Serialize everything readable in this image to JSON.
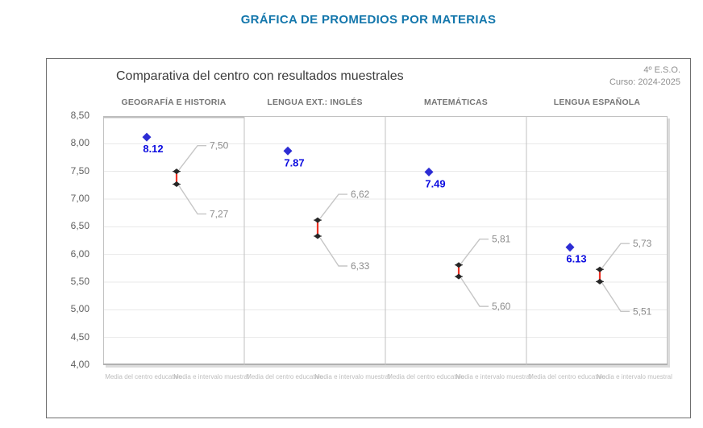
{
  "page": {
    "title": "GRÁFICA DE PROMEDIOS POR MATERIAS",
    "title_color": "#1477ac"
  },
  "chart_data": {
    "type": "scatter",
    "title": "Comparativa del centro con resultados muestrales",
    "grade": "4º E.S.O.",
    "course": "Curso: 2024-2025",
    "ylim": [
      4.0,
      8.5
    ],
    "ytick_step": 0.5,
    "ytick_labels": [
      "8,50",
      "8,00",
      "7,50",
      "7,00",
      "6,50",
      "6,00",
      "5,50",
      "5,00",
      "4,50",
      "4,00"
    ],
    "category_labels": [
      "Media del centro educativo",
      "Media e intervalo muestral"
    ],
    "grid": true,
    "legend_position": "none",
    "panels": [
      {
        "subject": "GEOGRAFÍA E HISTORIA",
        "center_mean": 8.12,
        "center_mean_label": "8.12",
        "interval_upper": 7.5,
        "interval_upper_label": "7,50",
        "interval_lower": 7.27,
        "interval_lower_label": "7,27"
      },
      {
        "subject": "LENGUA EXT.: INGLÉS",
        "center_mean": 7.87,
        "center_mean_label": "7.87",
        "interval_upper": 6.62,
        "interval_upper_label": "6,62",
        "interval_lower": 6.33,
        "interval_lower_label": "6,33"
      },
      {
        "subject": "MATEMÁTICAS",
        "center_mean": 7.49,
        "center_mean_label": "7.49",
        "interval_upper": 5.81,
        "interval_upper_label": "5,81",
        "interval_lower": 5.6,
        "interval_lower_label": "5,60"
      },
      {
        "subject": "LENGUA ESPAÑOLA",
        "center_mean": 6.13,
        "center_mean_label": "6.13",
        "interval_upper": 5.73,
        "interval_upper_label": "5,73",
        "interval_lower": 5.51,
        "interval_lower_label": "5,51"
      }
    ],
    "colors": {
      "center_point": "#2d2dd4",
      "center_label": "#0d0de0",
      "interval_line": "#ee3224",
      "interval_cap": "#262626",
      "callout_text": "#8c8c8c",
      "leader_line": "#c6c6c6",
      "grid_line": "#e8e8e8",
      "panel_border": "#c2c2c2",
      "axis_line": "#b0b0b0"
    }
  }
}
